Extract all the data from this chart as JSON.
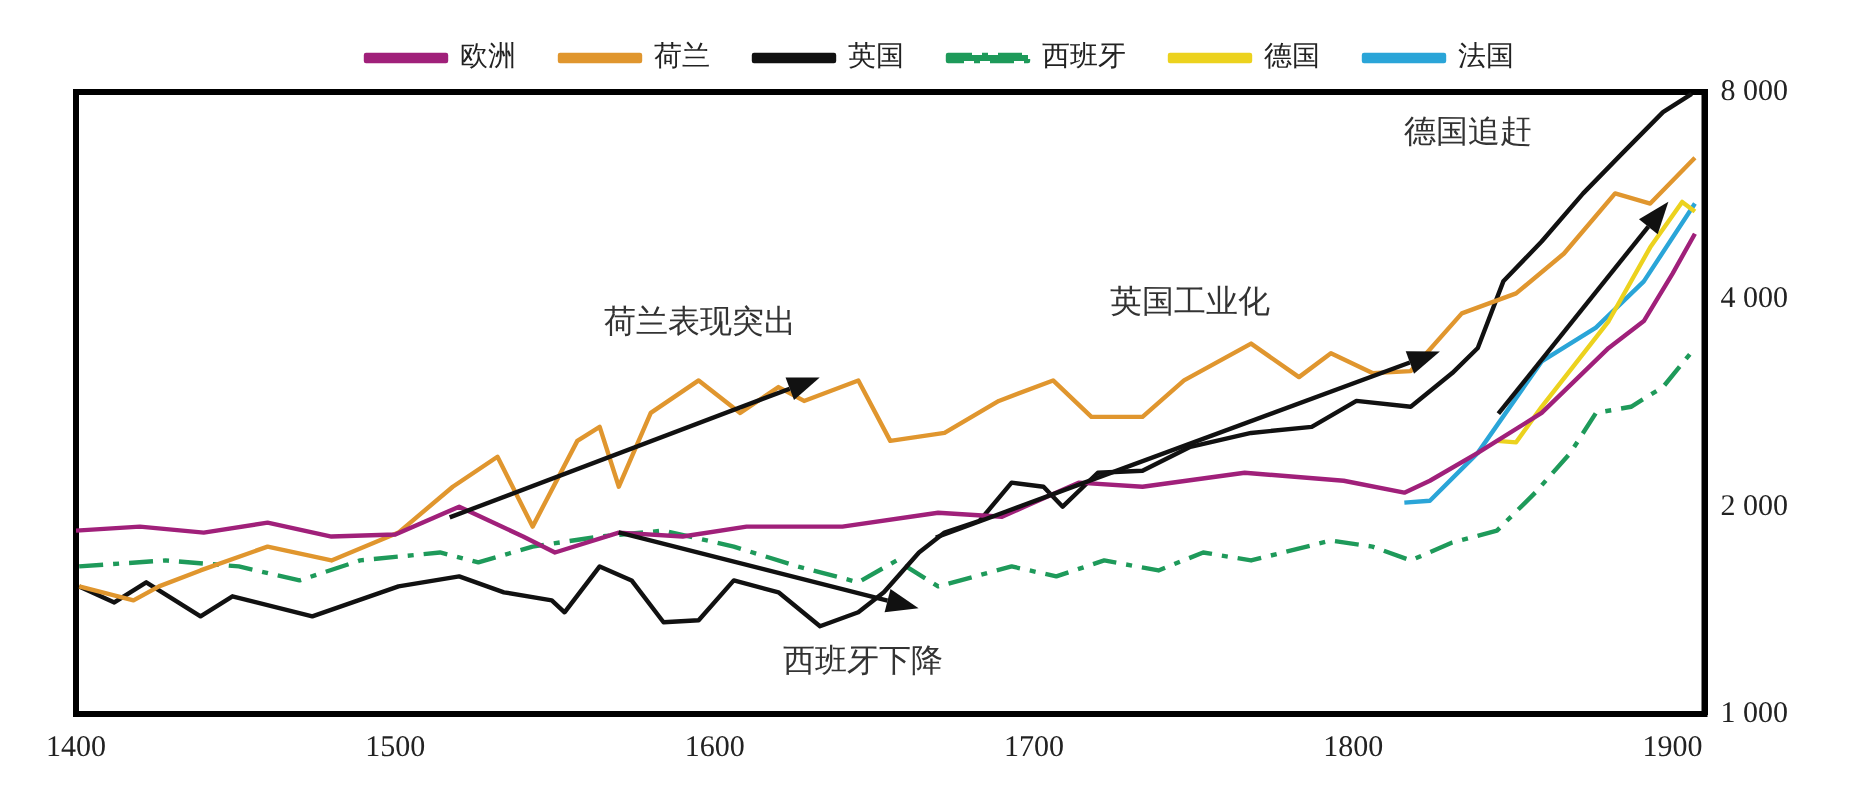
{
  "chart_data": {
    "type": "line",
    "xlim": [
      1400,
      1910
    ],
    "xticks": [
      1400,
      1500,
      1600,
      1700,
      1800,
      1900
    ],
    "ylim": [
      1000,
      8000
    ],
    "yticks": [
      {
        "value": 1000,
        "label": "1 000"
      },
      {
        "value": 2000,
        "label": "2 000"
      },
      {
        "value": 4000,
        "label": "4 000"
      },
      {
        "value": 8000,
        "label": "8 000"
      }
    ],
    "log": "y",
    "grid": false,
    "legend": "top",
    "marker": "none",
    "series": [
      {
        "name": "欧洲",
        "color": "#a0207a",
        "x": [
          1400,
          1420,
          1440,
          1460,
          1480,
          1500,
          1520,
          1540,
          1550,
          1570,
          1590,
          1610,
          1640,
          1670,
          1690,
          1714,
          1734,
          1766,
          1797,
          1816,
          1824,
          1839,
          1859,
          1880,
          1891,
          1900,
          1907
        ],
        "values": [
          1846,
          1871,
          1834,
          1896,
          1810,
          1822,
          2000,
          1810,
          1716,
          1834,
          1810,
          1871,
          1871,
          1960,
          1934,
          2167,
          2138,
          2240,
          2181,
          2096,
          2181,
          2394,
          2736,
          3400,
          3720,
          4360,
          4980
        ]
      },
      {
        "name": "荷兰",
        "color": "#e0962e",
        "x": [
          1401,
          1418,
          1426,
          1439,
          1460,
          1480,
          1501,
          1518,
          1532,
          1543,
          1557,
          1564,
          1570,
          1580,
          1595,
          1608,
          1620,
          1628,
          1645,
          1655,
          1672,
          1689,
          1706,
          1718,
          1734,
          1747,
          1768,
          1783,
          1793,
          1806,
          1818,
          1834,
          1851,
          1866,
          1882,
          1893,
          1907
        ],
        "values": [
          1532,
          1462,
          1532,
          1616,
          1750,
          1671,
          1834,
          2138,
          2363,
          1871,
          2492,
          2611,
          2138,
          2736,
          3050,
          2736,
          2983,
          2848,
          3050,
          2492,
          2559,
          2848,
          3050,
          2700,
          2700,
          3050,
          3450,
          3084,
          3341,
          3126,
          3147,
          3817,
          4080,
          4663,
          5700,
          5510,
          6420
        ]
      },
      {
        "name": "英国",
        "color": "#111111",
        "x": [
          1401,
          1412,
          1422,
          1439,
          1449,
          1474,
          1501,
          1520,
          1534,
          1549,
          1553,
          1564,
          1574,
          1584,
          1595,
          1606,
          1620,
          1633,
          1645,
          1653,
          1664,
          1672,
          1683,
          1693,
          1703,
          1709,
          1720,
          1734,
          1749,
          1768,
          1787,
          1801,
          1818,
          1831,
          1839,
          1847,
          1859,
          1872,
          1884,
          1897,
          1906
        ],
        "values": [
          1532,
          1452,
          1553,
          1386,
          1482,
          1386,
          1532,
          1584,
          1502,
          1462,
          1405,
          1638,
          1563,
          1359,
          1368,
          1563,
          1502,
          1341,
          1405,
          1502,
          1716,
          1834,
          1908,
          2167,
          2138,
          2000,
          2240,
          2255,
          2443,
          2559,
          2611,
          2848,
          2793,
          3126,
          3400,
          4248,
          4853,
          5700,
          6500,
          7480,
          7950
        ]
      },
      {
        "name": "西班牙",
        "color": "#1e9a5a",
        "line_style": "dashed",
        "x": [
          1401,
          1428,
          1451,
          1470,
          1489,
          1514,
          1526,
          1543,
          1564,
          1584,
          1606,
          1626,
          1645,
          1657,
          1670,
          1693,
          1707,
          1722,
          1739,
          1753,
          1768,
          1793,
          1806,
          1818,
          1831,
          1845,
          1857,
          1868,
          1876,
          1887,
          1897,
          1907
        ],
        "values": [
          1638,
          1671,
          1638,
          1563,
          1671,
          1716,
          1660,
          1750,
          1810,
          1846,
          1750,
          1638,
          1553,
          1671,
          1532,
          1638,
          1584,
          1671,
          1616,
          1716,
          1671,
          1786,
          1750,
          1671,
          1774,
          1846,
          2096,
          2394,
          2736,
          2793,
          2983,
          3400
        ]
      },
      {
        "name": "德国",
        "color": "#ecd21e",
        "x": [
          1845,
          1851,
          1859,
          1880,
          1893,
          1903,
          1907
        ],
        "values": [
          2492,
          2480,
          2793,
          3720,
          4760,
          5540,
          5363
        ]
      },
      {
        "name": "法国",
        "color": "#2aa5d8",
        "x": [
          1816,
          1824,
          1839,
          1859,
          1876,
          1891,
          1907
        ],
        "values": [
          2027,
          2040,
          2394,
          3250,
          3640,
          4248,
          5510
        ]
      }
    ],
    "annotations": [
      "荷兰表现突出",
      "西班牙下降",
      "英国工业化",
      "德国追赶"
    ]
  }
}
